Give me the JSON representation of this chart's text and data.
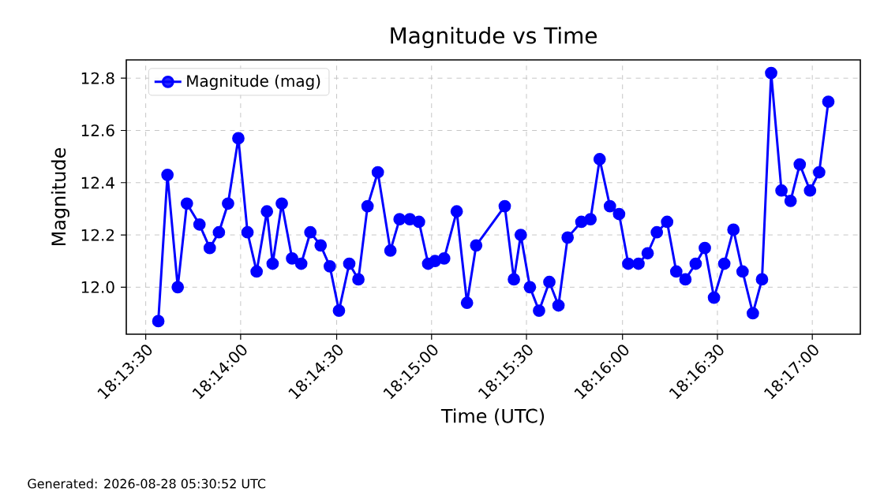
{
  "chart_data": {
    "type": "line",
    "title": "Magnitude vs Time",
    "xlabel": "Time (UTC)",
    "ylabel": "Magnitude",
    "annotations": [
      "Generated: 2026-08-28 05:30:52 UTC"
    ],
    "x": [
      18.2261,
      18.2269,
      18.2278,
      18.2286,
      18.2297,
      18.2306,
      18.2314,
      18.2322,
      18.2331,
      18.2339,
      18.2347,
      18.2356,
      18.2361,
      18.2369,
      18.2378,
      18.2386,
      18.2394,
      18.2403,
      18.2411,
      18.2419,
      18.2428,
      18.2436,
      18.2444,
      18.2453,
      18.2464,
      18.2472,
      18.2481,
      18.2489,
      18.2497,
      18.2503,
      18.2511,
      18.2522,
      18.2531,
      18.2539,
      18.2564,
      18.2572,
      18.2578,
      18.2586,
      18.2594,
      18.2603,
      18.2611,
      18.2619,
      18.2631,
      18.2639,
      18.2647,
      18.2656,
      18.2664,
      18.2672,
      18.2681,
      18.2689,
      18.2697,
      18.2706,
      18.2714,
      18.2722,
      18.2731,
      18.2739,
      18.2747,
      18.2756,
      18.2764,
      18.2772,
      18.2781,
      18.2789,
      18.2797,
      18.2806,
      18.2814,
      18.2822,
      18.2831,
      18.2839,
      18.2847
    ],
    "series": [
      {
        "name": "Magnitude (mag)",
        "color": "#0000ff",
        "values": [
          11.87,
          12.43,
          12.0,
          12.32,
          12.24,
          12.15,
          12.21,
          12.32,
          12.57,
          12.21,
          12.06,
          12.29,
          12.09,
          12.32,
          12.11,
          12.09,
          12.21,
          12.16,
          12.08,
          11.91,
          12.09,
          12.03,
          12.31,
          12.44,
          12.14,
          12.26,
          12.26,
          12.25,
          12.09,
          12.1,
          12.11,
          12.29,
          11.94,
          12.16,
          12.31,
          12.03,
          12.2,
          12.0,
          11.91,
          12.02,
          11.93,
          12.19,
          12.25,
          12.26,
          12.49,
          12.31,
          12.28,
          12.09,
          12.09,
          12.13,
          12.21,
          12.25,
          12.06,
          12.03,
          12.09,
          12.15,
          11.96,
          12.09,
          12.22,
          12.06,
          11.9,
          12.03,
          12.82,
          12.37,
          12.33,
          12.47,
          12.37,
          12.44,
          12.71
        ]
      }
    ],
    "xlim": [
      18.2233,
      18.2875
    ],
    "xticks": [
      {
        "value": 18.225,
        "label": "18:13:30"
      },
      {
        "value": 18.2333,
        "label": "18:14:00"
      },
      {
        "value": 18.2417,
        "label": "18:14:30"
      },
      {
        "value": 18.25,
        "label": "18:15:00"
      },
      {
        "value": 18.2583,
        "label": "18:15:30"
      },
      {
        "value": 18.2667,
        "label": "18:16:00"
      },
      {
        "value": 18.275,
        "label": "18:16:30"
      },
      {
        "value": 18.2833,
        "label": "18:17:00"
      }
    ],
    "ylim": [
      11.82,
      12.87
    ],
    "yticks": [
      {
        "value": 12.0,
        "label": "12.0"
      },
      {
        "value": 12.2,
        "label": "12.2"
      },
      {
        "value": 12.4,
        "label": "12.4"
      },
      {
        "value": 12.6,
        "label": "12.6"
      },
      {
        "value": 12.8,
        "label": "12.8"
      }
    ],
    "grid": true,
    "legend": "top left",
    "marker": "circle",
    "line_style": "solid"
  }
}
